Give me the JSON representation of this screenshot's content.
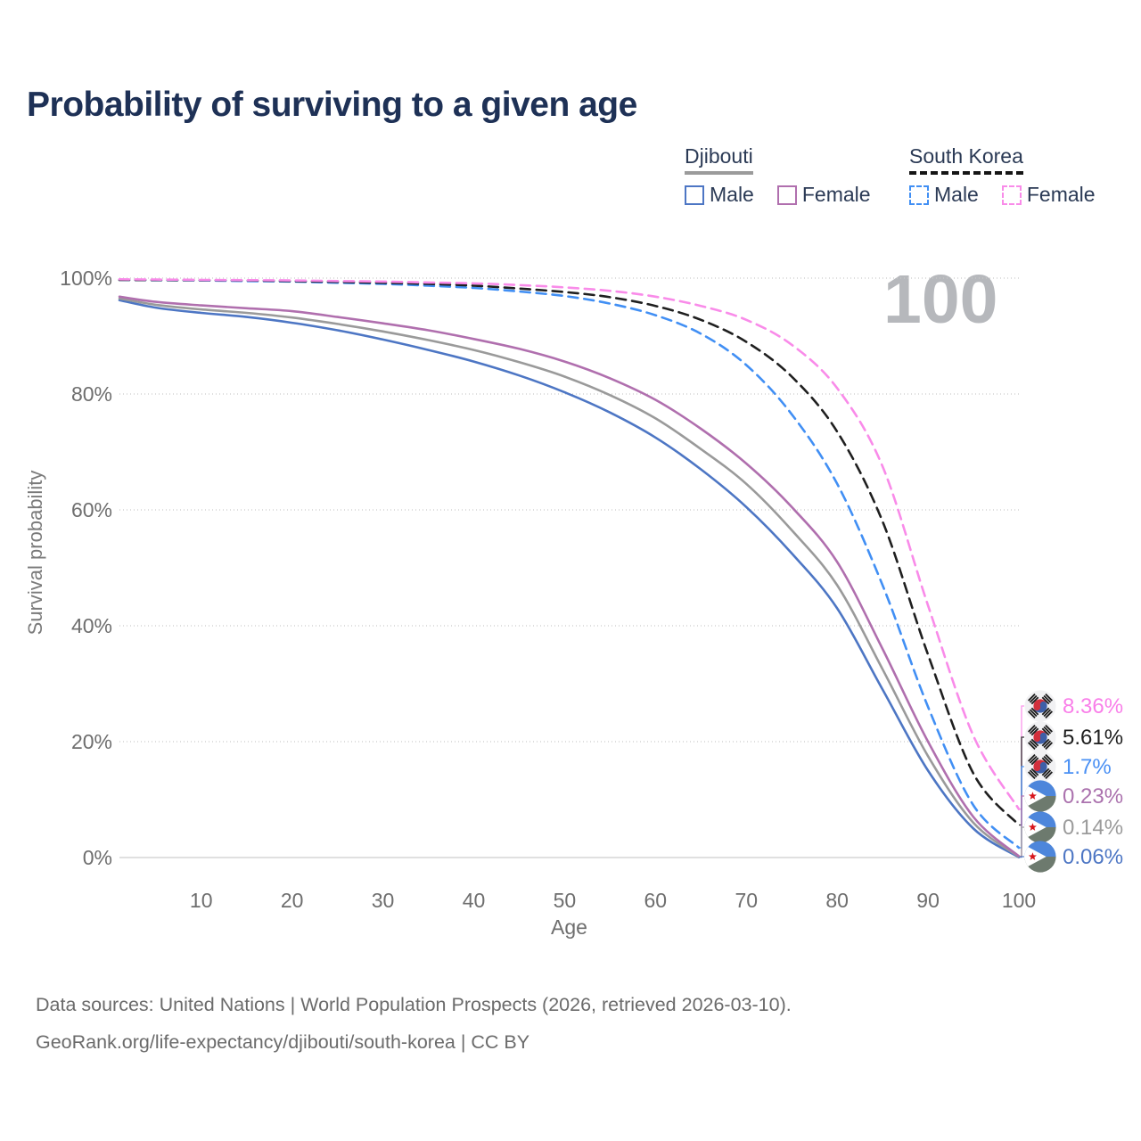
{
  "title": "Probability of surviving to a given age",
  "watermark": "100",
  "legend": {
    "position": "top-right",
    "groups": [
      {
        "name": "Djibouti",
        "line_style": "solid",
        "line_color": "#9b9b9b",
        "items": [
          {
            "label": "Male",
            "color": "#4d76c4",
            "dashed": false
          },
          {
            "label": "Female",
            "color": "#b06fae",
            "dashed": false
          }
        ]
      },
      {
        "name": "South Korea",
        "line_style": "dashed",
        "line_color": "#151515",
        "items": [
          {
            "label": "Male",
            "color": "#418ff4",
            "dashed": true
          },
          {
            "label": "Female",
            "color": "#f98be9",
            "dashed": true
          }
        ]
      }
    ]
  },
  "chart_data": {
    "type": "line",
    "title": "Probability of surviving to a given age",
    "xlabel": "Age",
    "ylabel": "Survival probability",
    "xlim": [
      1,
      100
    ],
    "ylim": [
      0,
      100
    ],
    "grid": true,
    "x_ticks": [
      10,
      20,
      30,
      40,
      50,
      60,
      70,
      80,
      90,
      100
    ],
    "y_ticks": [
      {
        "value": 0,
        "label": "0%"
      },
      {
        "value": 20,
        "label": "20%"
      },
      {
        "value": 40,
        "label": "40%"
      },
      {
        "value": 60,
        "label": "60%"
      },
      {
        "value": 80,
        "label": "80%"
      },
      {
        "value": 100,
        "label": "100%"
      }
    ],
    "ages": [
      1,
      5,
      10,
      15,
      20,
      25,
      30,
      35,
      40,
      45,
      50,
      55,
      60,
      65,
      70,
      75,
      80,
      85,
      90,
      95,
      100
    ],
    "series": [
      {
        "name": "South Korea — Female",
        "country": "South Korea",
        "sex": "Female",
        "flag": "kr",
        "color": "#f98be9",
        "label_color": "#f97fe9",
        "dashed": true,
        "final_label": "8.36%",
        "values": [
          99.8,
          99.75,
          99.7,
          99.65,
          99.6,
          99.5,
          99.4,
          99.25,
          99.1,
          98.8,
          98.4,
          97.8,
          96.8,
          95.2,
          92.8,
          88.5,
          81.0,
          67.5,
          43.5,
          21.0,
          8.36
        ]
      },
      {
        "name": "South Korea — Both sexes",
        "country": "South Korea",
        "sex": "Both",
        "flag": "kr",
        "color": "#1f1f1f",
        "label_color": "#1f1f1f",
        "dashed": true,
        "final_label": "5.61%",
        "values": [
          99.7,
          99.68,
          99.65,
          99.6,
          99.5,
          99.35,
          99.2,
          99.0,
          98.7,
          98.2,
          97.6,
          96.7,
          95.2,
          92.8,
          89.0,
          83.0,
          73.5,
          58.0,
          35.0,
          14.5,
          5.61
        ]
      },
      {
        "name": "South Korea — Male",
        "country": "South Korea",
        "sex": "Male",
        "flag": "kr",
        "color": "#418ff4",
        "label_color": "#4a90f4",
        "dashed": true,
        "final_label": "1.7%",
        "values": [
          99.7,
          99.65,
          99.6,
          99.5,
          99.4,
          99.2,
          99.0,
          98.7,
          98.3,
          97.7,
          96.9,
          95.6,
          93.6,
          90.4,
          85.0,
          76.5,
          64.5,
          47.0,
          26.0,
          9.0,
          1.7
        ]
      },
      {
        "name": "Djibouti — Female",
        "country": "Djibouti",
        "sex": "Female",
        "flag": "dj",
        "color": "#b06fae",
        "label_color": "#ab72ae",
        "dashed": false,
        "final_label": "0.23%",
        "values": [
          96.8,
          95.9,
          95.3,
          94.8,
          94.3,
          93.3,
          92.2,
          91.0,
          89.5,
          87.8,
          85.6,
          82.7,
          79.0,
          74.0,
          68.0,
          60.5,
          51.0,
          36.0,
          20.0,
          7.0,
          0.23
        ]
      },
      {
        "name": "Djibouti — Both sexes",
        "country": "Djibouti",
        "sex": "Both",
        "flag": "dj",
        "color": "#9a9a9a",
        "label_color": "#9b9b9b",
        "dashed": false,
        "final_label": "0.14%",
        "values": [
          96.5,
          95.4,
          94.6,
          94.0,
          93.2,
          92.1,
          90.8,
          89.3,
          87.6,
          85.5,
          83.0,
          79.8,
          75.8,
          70.5,
          64.5,
          56.5,
          47.0,
          32.5,
          17.5,
          6.0,
          0.14
        ]
      },
      {
        "name": "Djibouti — Male",
        "country": "Djibouti",
        "sex": "Male",
        "flag": "dj",
        "color": "#4d76c4",
        "label_color": "#4d76c4",
        "dashed": false,
        "final_label": "0.06%",
        "values": [
          96.2,
          94.9,
          94.0,
          93.3,
          92.3,
          91.0,
          89.4,
          87.6,
          85.6,
          83.2,
          80.3,
          76.8,
          72.5,
          67.0,
          60.5,
          52.5,
          43.0,
          29.0,
          15.0,
          5.0,
          0.06
        ]
      }
    ]
  },
  "footer": {
    "line1": "Data sources: United Nations | World Population Prospects (2026, retrieved 2026-03-10).",
    "line2": "GeoRank.org/life-expectancy/djibouti/south-korea | CC BY"
  }
}
